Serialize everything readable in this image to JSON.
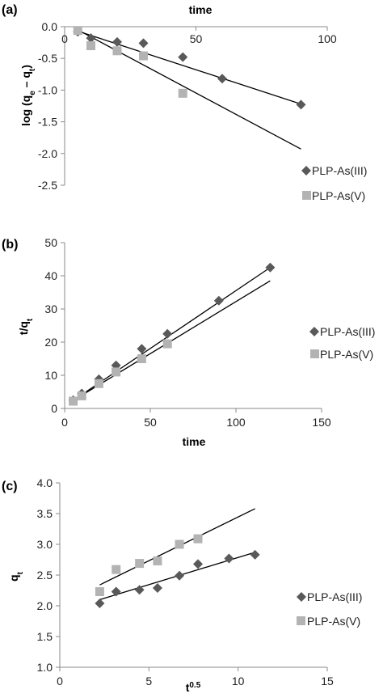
{
  "colors": {
    "s1": "#595959",
    "s2": "#b3b3b3",
    "axis": "#8a8a8a",
    "fit": "#000000"
  },
  "chart_data": [
    {
      "type": "scatter",
      "panel_label": "(a)",
      "xlabel": "time",
      "xlabel_position": "top",
      "ylabel_base": "log (q",
      "ylabel_sub1": "e",
      "ylabel_mid": " – q",
      "ylabel_sub2": "t",
      "ylabel_end": ")",
      "xlim": [
        0,
        100
      ],
      "ylim": [
        -2.5,
        0
      ],
      "xticks": [
        0,
        50,
        100
      ],
      "xtick_labels": [
        "0",
        "50",
        "100"
      ],
      "yticks": [
        0,
        -0.5,
        -1,
        -1.5,
        -2,
        -2.5
      ],
      "ytick_labels": [
        "0.0",
        "-0.5",
        "-1.0",
        "-1.5",
        "-2.0",
        "-2.5"
      ],
      "legend_position": "bottom-right",
      "series": [
        {
          "name": "PLP-As(III)",
          "marker": "diamond",
          "x": [
            5,
            10,
            20,
            30,
            45,
            60,
            90
          ],
          "y": [
            -0.08,
            -0.18,
            -0.24,
            -0.26,
            -0.48,
            -0.82,
            -1.23
          ],
          "fit": {
            "x": [
              5,
              90
            ],
            "y": [
              -0.07,
              -1.22
            ]
          }
        },
        {
          "name": "PLP-As(V)",
          "marker": "square",
          "x": [
            5,
            10,
            20,
            30,
            45
          ],
          "y": [
            -0.06,
            -0.3,
            -0.38,
            -0.46,
            -1.05
          ],
          "fit": {
            "x": [
              5,
              90
            ],
            "y": [
              -0.05,
              -1.93
            ]
          }
        }
      ]
    },
    {
      "type": "scatter",
      "panel_label": "(b)",
      "xlabel": "time",
      "ylabel_base": "t/q",
      "ylabel_sub1": "t",
      "xlim": [
        0,
        150
      ],
      "ylim": [
        0,
        50
      ],
      "xticks": [
        0,
        50,
        100,
        150
      ],
      "xtick_labels": [
        "0",
        "50",
        "100",
        "150"
      ],
      "yticks": [
        0,
        10,
        20,
        30,
        40,
        50
      ],
      "ytick_labels": [
        "0",
        "10",
        "20",
        "30",
        "40",
        "50"
      ],
      "legend_position": "right",
      "series": [
        {
          "name": "PLP-As(III)",
          "marker": "diamond",
          "x": [
            5,
            10,
            20,
            30,
            45,
            60,
            90,
            120
          ],
          "y": [
            2.5,
            4.5,
            8.8,
            13,
            18,
            22.5,
            32.5,
            42.5
          ],
          "fit": {
            "x": [
              5,
              120
            ],
            "y": [
              2.4,
              42.5
            ]
          }
        },
        {
          "name": "PLP-As(V)",
          "marker": "square",
          "x": [
            5,
            10,
            20,
            30,
            45,
            60
          ],
          "y": [
            2.2,
            3.8,
            7.5,
            11,
            15,
            19.5
          ],
          "fit": {
            "x": [
              5,
              120
            ],
            "y": [
              2.4,
              38.5
            ]
          }
        }
      ]
    },
    {
      "type": "scatter",
      "panel_label": "(c)",
      "xlabel_base": "t",
      "xlabel_sup": "0.5",
      "ylabel_base": "q",
      "ylabel_sub1": "t",
      "xlim": [
        0,
        15
      ],
      "ylim": [
        1,
        4
      ],
      "xticks": [
        0,
        5,
        10,
        15
      ],
      "xtick_labels": [
        "0",
        "5",
        "10",
        "15"
      ],
      "yticks": [
        1,
        1.5,
        2,
        2.5,
        3,
        3.5,
        4
      ],
      "ytick_labels": [
        "1.0",
        "1.5",
        "2.0",
        "2.5",
        "3.0",
        "3.5",
        "4.0"
      ],
      "legend_position": "right",
      "series": [
        {
          "name": "PLP-As(III)",
          "marker": "diamond",
          "x": [
            2.24,
            3.16,
            4.47,
            5.48,
            6.71,
            7.75,
            9.49,
            10.95
          ],
          "y": [
            2.04,
            2.23,
            2.26,
            2.29,
            2.49,
            2.68,
            2.77,
            2.83
          ],
          "fit": {
            "x": [
              2.24,
              10.95
            ],
            "y": [
              2.1,
              2.87
            ]
          }
        },
        {
          "name": "PLP-As(V)",
          "marker": "square",
          "x": [
            2.24,
            3.16,
            4.47,
            5.48,
            6.71,
            7.75
          ],
          "y": [
            2.23,
            2.59,
            2.69,
            2.73,
            3.0,
            3.09
          ],
          "fit": {
            "x": [
              2.24,
              10.95
            ],
            "y": [
              2.34,
              3.58
            ]
          }
        }
      ]
    }
  ]
}
